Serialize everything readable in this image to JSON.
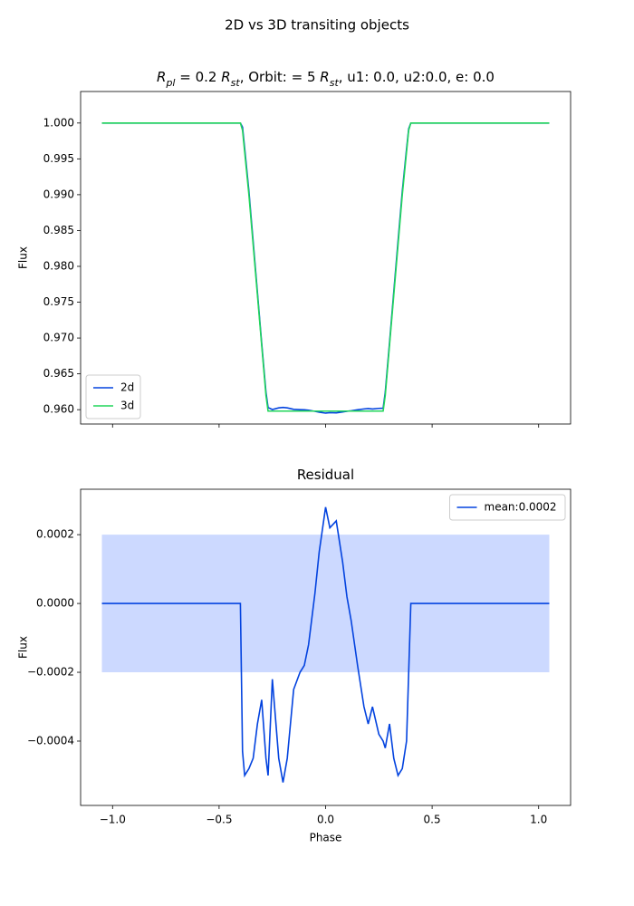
{
  "title": "2D vs 3D transiting objects",
  "chart_data": [
    {
      "type": "line",
      "title": [
        {
          "text": "R",
          "style": "italic"
        },
        {
          "text": "pl",
          "style": "sub"
        },
        {
          "text": " = 0.2 ",
          "style": "normal"
        },
        {
          "text": "R",
          "style": "italic"
        },
        {
          "text": "st",
          "style": "sub"
        },
        {
          "text": ", Orbit: = 5 ",
          "style": "normal"
        },
        {
          "text": "R",
          "style": "italic"
        },
        {
          "text": "st",
          "style": "sub"
        },
        {
          "text": ", u1: 0.0, u2:0.0, e: 0.0",
          "style": "normal"
        }
      ],
      "ylabel": "Flux",
      "x": [
        -1.05,
        -0.4,
        -0.39,
        -0.38,
        -0.36,
        -0.34,
        -0.32,
        -0.3,
        -0.28,
        -0.27,
        -0.25,
        -0.22,
        -0.2,
        -0.18,
        -0.15,
        -0.12,
        -0.1,
        -0.08,
        -0.05,
        -0.03,
        0.0,
        0.02,
        0.05,
        0.08,
        0.1,
        0.12,
        0.15,
        0.18,
        0.2,
        0.22,
        0.25,
        0.27,
        0.28,
        0.3,
        0.32,
        0.34,
        0.36,
        0.38,
        0.39,
        0.4,
        1.05
      ],
      "series": [
        {
          "name": "2d",
          "color": "#0343df",
          "values": [
            1.0,
            1.0,
            0.99943,
            0.9965,
            0.99048,
            0.98345,
            0.97635,
            0.96928,
            0.96245,
            0.9603,
            0.96002,
            0.96025,
            0.96032,
            0.96025,
            0.96005,
            0.96,
            0.95998,
            0.95992,
            0.95977,
            0.95965,
            0.95952,
            0.95958,
            0.95956,
            0.95968,
            0.95978,
            0.95985,
            0.95998,
            0.9601,
            0.96015,
            0.9601,
            0.96018,
            0.9602,
            0.96242,
            0.96935,
            0.97645,
            0.9835,
            0.99048,
            0.9964,
            0.9992,
            1.0,
            1.0
          ]
        },
        {
          "name": "3d",
          "color": "#21d65a",
          "values": [
            1.0,
            1.0,
            0.999,
            0.996,
            0.99,
            0.983,
            0.976,
            0.969,
            0.962,
            0.9598,
            0.9598,
            0.9598,
            0.9598,
            0.9598,
            0.9598,
            0.9598,
            0.9598,
            0.9598,
            0.9598,
            0.9598,
            0.9598,
            0.9598,
            0.9598,
            0.9598,
            0.9598,
            0.9598,
            0.9598,
            0.9598,
            0.9598,
            0.9598,
            0.9598,
            0.9598,
            0.962,
            0.969,
            0.976,
            0.983,
            0.99,
            0.996,
            0.999,
            1.0,
            1.0
          ]
        }
      ],
      "xlim": [
        -1.15,
        1.15
      ],
      "xticks": [
        -1.0,
        -0.5,
        0.0,
        0.5,
        1.0
      ],
      "show_xtick_labels": false,
      "ylim": [
        0.958,
        1.0044
      ],
      "yticks": [
        {
          "value": 0.96,
          "label": "0.960"
        },
        {
          "value": 0.965,
          "label": "0.965"
        },
        {
          "value": 0.97,
          "label": "0.970"
        },
        {
          "value": 0.975,
          "label": "0.975"
        },
        {
          "value": 0.98,
          "label": "0.980"
        },
        {
          "value": 0.985,
          "label": "0.985"
        },
        {
          "value": 0.99,
          "label": "0.990"
        },
        {
          "value": 0.995,
          "label": "0.995"
        },
        {
          "value": 1.0,
          "label": "1.000"
        }
      ],
      "legend": "lower left"
    },
    {
      "type": "line",
      "title": [
        {
          "text": "Residual",
          "style": "normal"
        }
      ],
      "xlabel": "Phase",
      "ylabel": "Flux",
      "x": [
        -1.05,
        -0.4,
        -0.39,
        -0.38,
        -0.36,
        -0.34,
        -0.32,
        -0.3,
        -0.28,
        -0.27,
        -0.25,
        -0.22,
        -0.2,
        -0.18,
        -0.15,
        -0.12,
        -0.1,
        -0.08,
        -0.05,
        -0.03,
        0.0,
        0.02,
        0.05,
        0.08,
        0.1,
        0.12,
        0.15,
        0.18,
        0.2,
        0.22,
        0.25,
        0.27,
        0.28,
        0.3,
        0.32,
        0.34,
        0.36,
        0.38,
        0.39,
        0.4,
        1.05
      ],
      "series": [
        {
          "name": "mean:0.0002",
          "color": "#0343df",
          "values": [
            0,
            0,
            -0.00043,
            -0.0005,
            -0.00048,
            -0.00045,
            -0.00035,
            -0.00028,
            -0.00045,
            -0.0005,
            -0.00022,
            -0.00045,
            -0.00052,
            -0.00045,
            -0.00025,
            -0.0002,
            -0.00018,
            -0.00012,
            3e-05,
            0.00015,
            0.00028,
            0.00022,
            0.00024,
            0.00012,
            2e-05,
            -5e-05,
            -0.00018,
            -0.0003,
            -0.00035,
            -0.0003,
            -0.00038,
            -0.0004,
            -0.00042,
            -0.00035,
            -0.00045,
            -0.0005,
            -0.00048,
            -0.0004,
            -0.0002,
            0,
            0
          ]
        }
      ],
      "band": {
        "x": [
          -1.05,
          1.05
        ],
        "y": [
          -0.0002,
          0.0002
        ],
        "color": "#ccd9ff"
      },
      "xlim": [
        -1.15,
        1.15
      ],
      "xticks": [
        {
          "value": -1.0,
          "label": "−1.0"
        },
        {
          "value": -0.5,
          "label": "−0.5"
        },
        {
          "value": 0.0,
          "label": "0.0"
        },
        {
          "value": 0.5,
          "label": "0.5"
        },
        {
          "value": 1.0,
          "label": "1.0"
        }
      ],
      "show_xtick_labels": true,
      "ylim": [
        -0.000587,
        0.000332
      ],
      "yticks": [
        {
          "value": -0.0004,
          "label": "−0.0004"
        },
        {
          "value": -0.0002,
          "label": "−0.0002"
        },
        {
          "value": 0,
          "label": "0.0000"
        },
        {
          "value": 0.0002,
          "label": "0.0002"
        }
      ],
      "legend": "upper right"
    }
  ]
}
